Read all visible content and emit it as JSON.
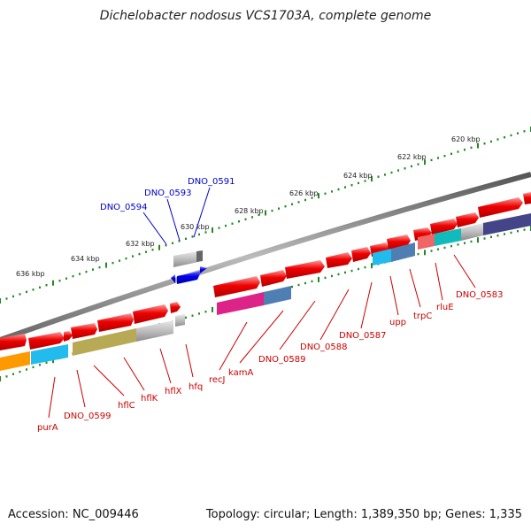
{
  "title": "Dichelobacter nodosus VCS1703A, complete genome",
  "footer": {
    "accession": "Accession: NC_009446",
    "topology": "Topology: circular; Length: 1,389,350 bp; Genes: 1,335"
  },
  "scale": {
    "ticks": [
      "620 kbp",
      "622 kbp",
      "624 kbp",
      "626 kbp",
      "628 kbp",
      "630 kbp",
      "632 kbp",
      "634 kbp",
      "636 kbp"
    ]
  },
  "genes": {
    "reverse_strand": [
      "DNO_0594",
      "DNO_0593",
      "DNO_0591"
    ],
    "forward_strand": [
      "purA",
      "DNO_0599",
      "hflC",
      "hflK",
      "hflX",
      "hfq",
      "recJ",
      "kamA",
      "DNO_0589",
      "DNO_0588",
      "DNO_0587",
      "upp",
      "trpC",
      "rluE",
      "DNO_0583"
    ]
  },
  "colors": {
    "gene_arrow": "#ee0000",
    "reverse_gene": "#0000ee",
    "label_forward": "#cc0000",
    "label_reverse": "#0000cc",
    "tick": "#228822",
    "backbone": "#777777"
  }
}
